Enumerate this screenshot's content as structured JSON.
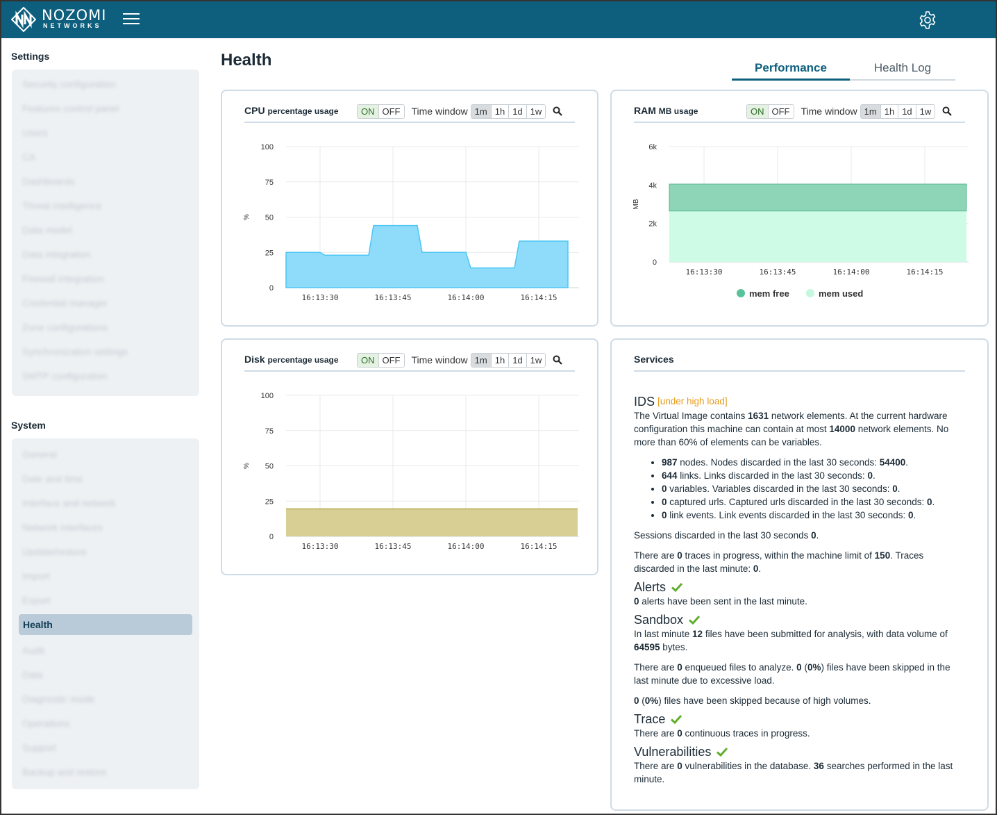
{
  "brand": {
    "name": "NOZOMI",
    "sub": "NETWORKS"
  },
  "sidebar": {
    "settings_heading": "Settings",
    "settings_items": [
      "Security configuration",
      "Features control panel",
      "Users",
      "CA",
      "Dashboards",
      "Threat intelligence",
      "Data model",
      "Data integration",
      "Firewall integration",
      "Credential manager",
      "Zone configurations",
      "Synchronization settings",
      "SMTP configuration"
    ],
    "system_heading": "System",
    "system_items": [
      "General",
      "Date and time",
      "Interface and network",
      "Network interfaces",
      "Update/restore",
      "Import",
      "Export",
      "Health",
      "Audit",
      "Data",
      "Diagnostic mode",
      "Operations",
      "Support",
      "Backup and restore"
    ],
    "active_item": "Health"
  },
  "page": {
    "title": "Health"
  },
  "tabs": {
    "performance": "Performance",
    "health_log": "Health Log"
  },
  "controls": {
    "on": "ON",
    "off": "OFF",
    "time_window": "Time window",
    "windows": [
      "1m",
      "1h",
      "1d",
      "1w"
    ]
  },
  "cpu": {
    "title": "CPU",
    "subtitle": "percentage usage"
  },
  "ram": {
    "title": "RAM",
    "subtitle": "MB usage"
  },
  "disk": {
    "title": "Disk",
    "subtitle": "percentage usage"
  },
  "colors": {
    "cpu": "#8fdcfa",
    "cpu_line": "#4cc6f4",
    "ram_free": "#8ed4b6",
    "ram_used": "#cdfbe6",
    "disk": "#d7cf94",
    "disk_line": "#b8aa4f",
    "brand": "#0e5f7e"
  },
  "chart_data": [
    {
      "type": "area",
      "title": "CPU percentage usage",
      "ylabel": "%",
      "x": [
        "16:13:23",
        "16:13:30",
        "16:13:31",
        "16:13:40",
        "16:13:41",
        "16:13:50",
        "16:13:51",
        "16:14:00",
        "16:14:01",
        "16:14:10",
        "16:14:11",
        "16:14:21"
      ],
      "x_ticks": [
        "16:13:30",
        "16:13:45",
        "16:14:00",
        "16:14:15"
      ],
      "y_ticks": [
        "0",
        "25",
        "50",
        "75",
        "100"
      ],
      "ylim": [
        0,
        100
      ],
      "values": [
        25,
        25,
        23,
        23,
        44,
        44,
        25,
        25,
        14,
        14,
        33,
        33
      ],
      "grid": true
    },
    {
      "type": "area",
      "title": "RAM MB usage",
      "ylabel": "MB",
      "x_ticks": [
        "16:13:30",
        "16:13:45",
        "16:14:00",
        "16:14:15"
      ],
      "y_ticks": [
        "0",
        "2k",
        "4k",
        "6k"
      ],
      "ylim": [
        0,
        6000
      ],
      "series": [
        {
          "name": "mem used",
          "values": [
            2650,
            2650
          ]
        },
        {
          "name": "mem free",
          "values": [
            1400,
            1400
          ]
        }
      ],
      "legend": "bottom",
      "grid": true
    },
    {
      "type": "area",
      "title": "Disk percentage usage",
      "ylabel": "%",
      "x_ticks": [
        "16:13:30",
        "16:13:45",
        "16:14:00",
        "16:14:15"
      ],
      "y_ticks": [
        "0",
        "25",
        "50",
        "75",
        "100"
      ],
      "ylim": [
        0,
        100
      ],
      "values": [
        19.5,
        19.5
      ],
      "grid": true
    }
  ],
  "services": {
    "title": "Services",
    "ids": {
      "heading": "IDS",
      "status": "[under high load]",
      "intro_1": "The Virtual Image contains ",
      "network_elements": "1631",
      "intro_2": " network elements. At the current hardware configuration this machine can contain at most ",
      "max_elements": "14000",
      "intro_3": " network elements. No more than 60% of elements can be variables.",
      "items": [
        {
          "count": "987",
          "text": " nodes. Nodes discarded in the last 30 seconds: ",
          "discarded": "54400"
        },
        {
          "count": "644",
          "text": " links. Links discarded in the last 30 seconds: ",
          "discarded": "0"
        },
        {
          "count": "0",
          "text": " variables. Variables discarded in the last 30 seconds: ",
          "discarded": "0"
        },
        {
          "count": "0",
          "text": " captured urls. Captured urls discarded in the last 30 seconds: ",
          "discarded": "0"
        },
        {
          "count": "0",
          "text": " link events. Link events discarded in the last 30 seconds: ",
          "discarded": "0"
        }
      ],
      "sessions_text": "Sessions discarded in the last 30 seconds ",
      "sessions_value": "0",
      "traces_1": "There are ",
      "traces_count": "0",
      "traces_2": " traces in progress, within the machine limit of ",
      "traces_limit": "150",
      "traces_3": ". Traces discarded in the last minute: ",
      "traces_discarded": "0"
    },
    "alerts": {
      "heading": "Alerts",
      "count": "0",
      "text": " alerts have been sent in the last minute."
    },
    "sandbox": {
      "heading": "Sandbox",
      "l1a": "In last minute ",
      "files": "12",
      "l1b": " files have been submitted for analysis, with data volume of ",
      "bytes": "64595",
      "l1c": " bytes.",
      "l2a": "There are ",
      "enqueued": "0",
      "l2b": " enqueued files to analyze. ",
      "skipped": "0",
      "l2c": " (",
      "skipped_pct": "0%",
      "l2d": ") files have been skipped in the last minute due to excessive load.",
      "l3_count": "0",
      "l3a": " (",
      "l3_pct": "0%",
      "l3b": ") files have been skipped because of high volumes."
    },
    "trace": {
      "heading": "Trace",
      "a": "There are ",
      "count": "0",
      "b": " continuous traces in progress."
    },
    "vulnerabilities": {
      "heading": "Vulnerabilities",
      "a": "There are ",
      "count": "0",
      "b": " vulnerabilities in the database. ",
      "searches": "36",
      "c": " searches performed in the last minute."
    }
  }
}
